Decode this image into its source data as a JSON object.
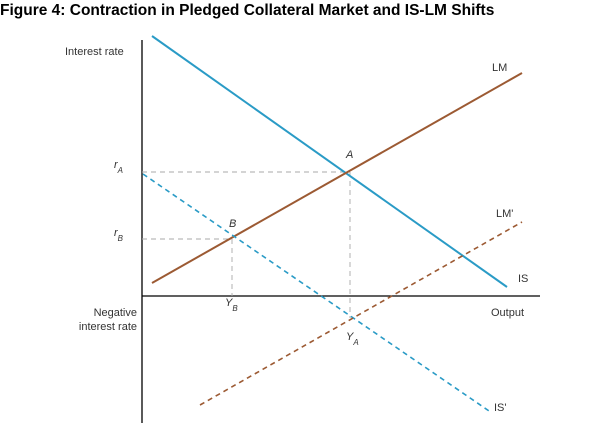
{
  "title": "Figure 4: Contraction in Pledged Collateral Market and IS-LM Shifts",
  "axes": {
    "y_label": "Interest rate",
    "x_label": "Output",
    "negative_label_line1": "Negative",
    "negative_label_line2": "interest rate"
  },
  "curves": {
    "lm": "LM",
    "lm_shifted": "LM'",
    "is": "IS",
    "is_shifted": "IS'"
  },
  "points": {
    "a": "A",
    "b": "B"
  },
  "ticks": {
    "r_a_main": "r",
    "r_a_sub": "A",
    "r_b_main": "r",
    "r_b_sub": "B",
    "y_b_main": "Y",
    "y_b_sub": "B",
    "y_a_main": "Y",
    "y_a_sub": "A"
  },
  "colors": {
    "is_curve": "#2a9bc6",
    "lm_curve": "#9c5a33",
    "axis": "#000000",
    "guide": "#aaaaaa"
  }
}
